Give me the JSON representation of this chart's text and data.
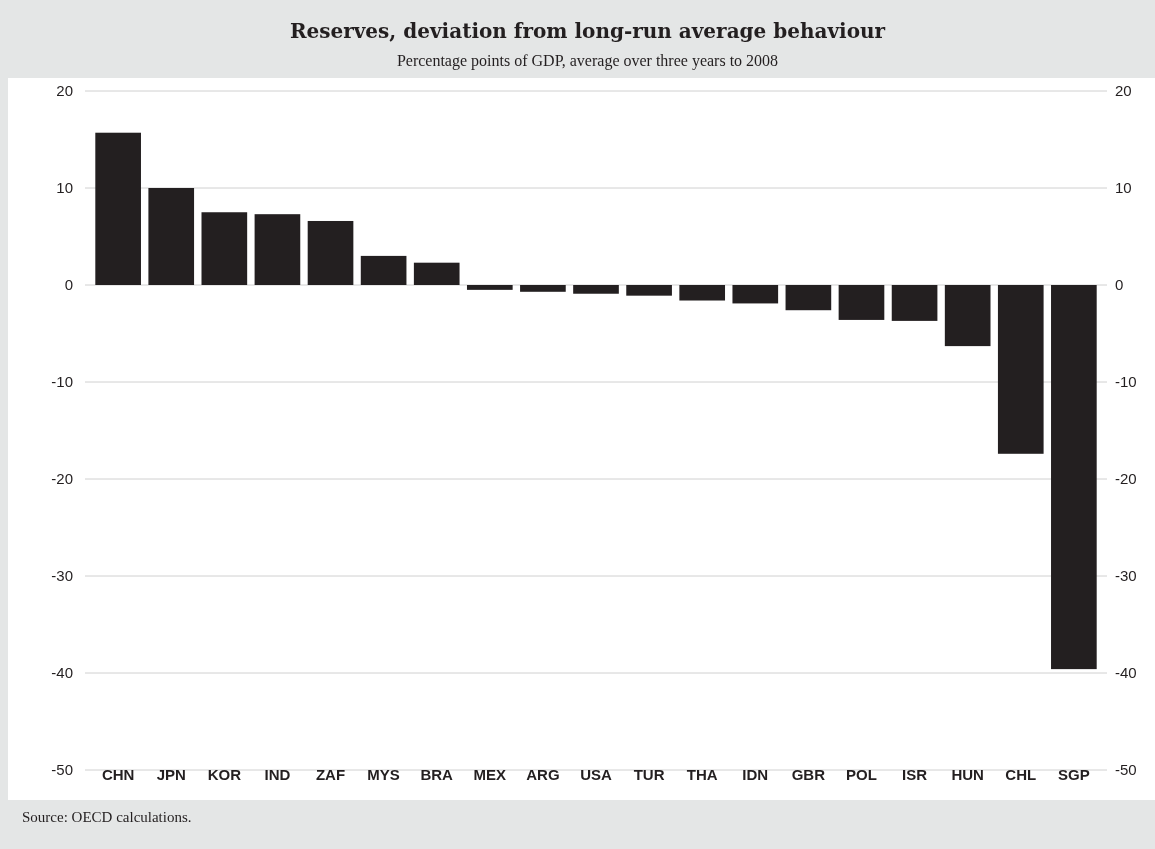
{
  "chart_data": {
    "type": "bar",
    "title": "Reserves, deviation from long-run average behaviour",
    "subtitle": "Percentage points of GDP, average over three years to 2008",
    "categories": [
      "CHN",
      "JPN",
      "KOR",
      "IND",
      "ZAF",
      "MYS",
      "BRA",
      "MEX",
      "ARG",
      "USA",
      "TUR",
      "THA",
      "IDN",
      "GBR",
      "POL",
      "ISR",
      "HUN",
      "CHL",
      "SGP"
    ],
    "values": [
      15.7,
      10.0,
      7.5,
      7.3,
      6.6,
      3.0,
      2.3,
      -0.5,
      -0.7,
      -0.9,
      -1.1,
      -1.6,
      -1.9,
      -2.6,
      -3.6,
      -3.7,
      -6.3,
      -17.4,
      -39.6
    ],
    "color": "#231f20",
    "ylim": [
      -50,
      20
    ],
    "yticks": [
      -50,
      -40,
      -30,
      -20,
      -10,
      0,
      10,
      20
    ],
    "y2lim": [
      -50,
      20
    ],
    "y2ticks": [
      -50,
      -40,
      -30,
      -20,
      -10,
      0,
      10,
      20
    ],
    "grid": "y",
    "annotations": [
      "Source: OECD calculations."
    ]
  }
}
